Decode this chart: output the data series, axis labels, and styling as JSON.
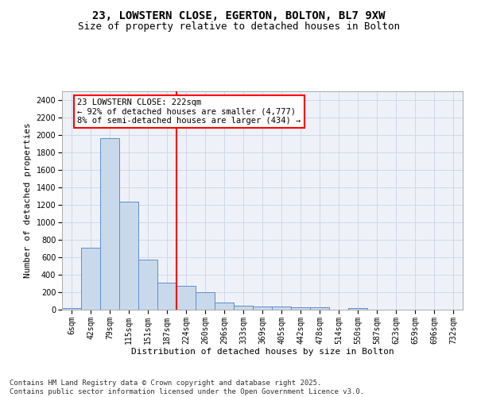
{
  "title_line1": "23, LOWSTERN CLOSE, EGERTON, BOLTON, BL7 9XW",
  "title_line2": "Size of property relative to detached houses in Bolton",
  "xlabel": "Distribution of detached houses by size in Bolton",
  "ylabel": "Number of detached properties",
  "bar_labels": [
    "6sqm",
    "42sqm",
    "79sqm",
    "115sqm",
    "151sqm",
    "187sqm",
    "224sqm",
    "260sqm",
    "296sqm",
    "333sqm",
    "369sqm",
    "405sqm",
    "442sqm",
    "478sqm",
    "514sqm",
    "550sqm",
    "587sqm",
    "623sqm",
    "659sqm",
    "696sqm",
    "732sqm"
  ],
  "bar_values": [
    15,
    710,
    1960,
    1240,
    575,
    305,
    270,
    200,
    85,
    50,
    38,
    35,
    30,
    28,
    0,
    20,
    0,
    0,
    0,
    0,
    0
  ],
  "bar_color": "#c9d9ec",
  "bar_edge_color": "#5b8fc9",
  "grid_color": "#d0d8e8",
  "background_color": "#eef2f8",
  "vline_index": 6,
  "vline_color": "red",
  "annotation_text": "23 LOWSTERN CLOSE: 222sqm\n← 92% of detached houses are smaller (4,777)\n8% of semi-detached houses are larger (434) →",
  "annotation_box_color": "white",
  "annotation_box_edge_color": "red",
  "ylim": [
    0,
    2500
  ],
  "yticks": [
    0,
    200,
    400,
    600,
    800,
    1000,
    1200,
    1400,
    1600,
    1800,
    2000,
    2200,
    2400
  ],
  "footer_text": "Contains HM Land Registry data © Crown copyright and database right 2025.\nContains public sector information licensed under the Open Government Licence v3.0.",
  "title_fontsize": 10,
  "subtitle_fontsize": 9,
  "axis_label_fontsize": 8,
  "tick_fontsize": 7,
  "annotation_fontsize": 7.5,
  "footer_fontsize": 6.5
}
